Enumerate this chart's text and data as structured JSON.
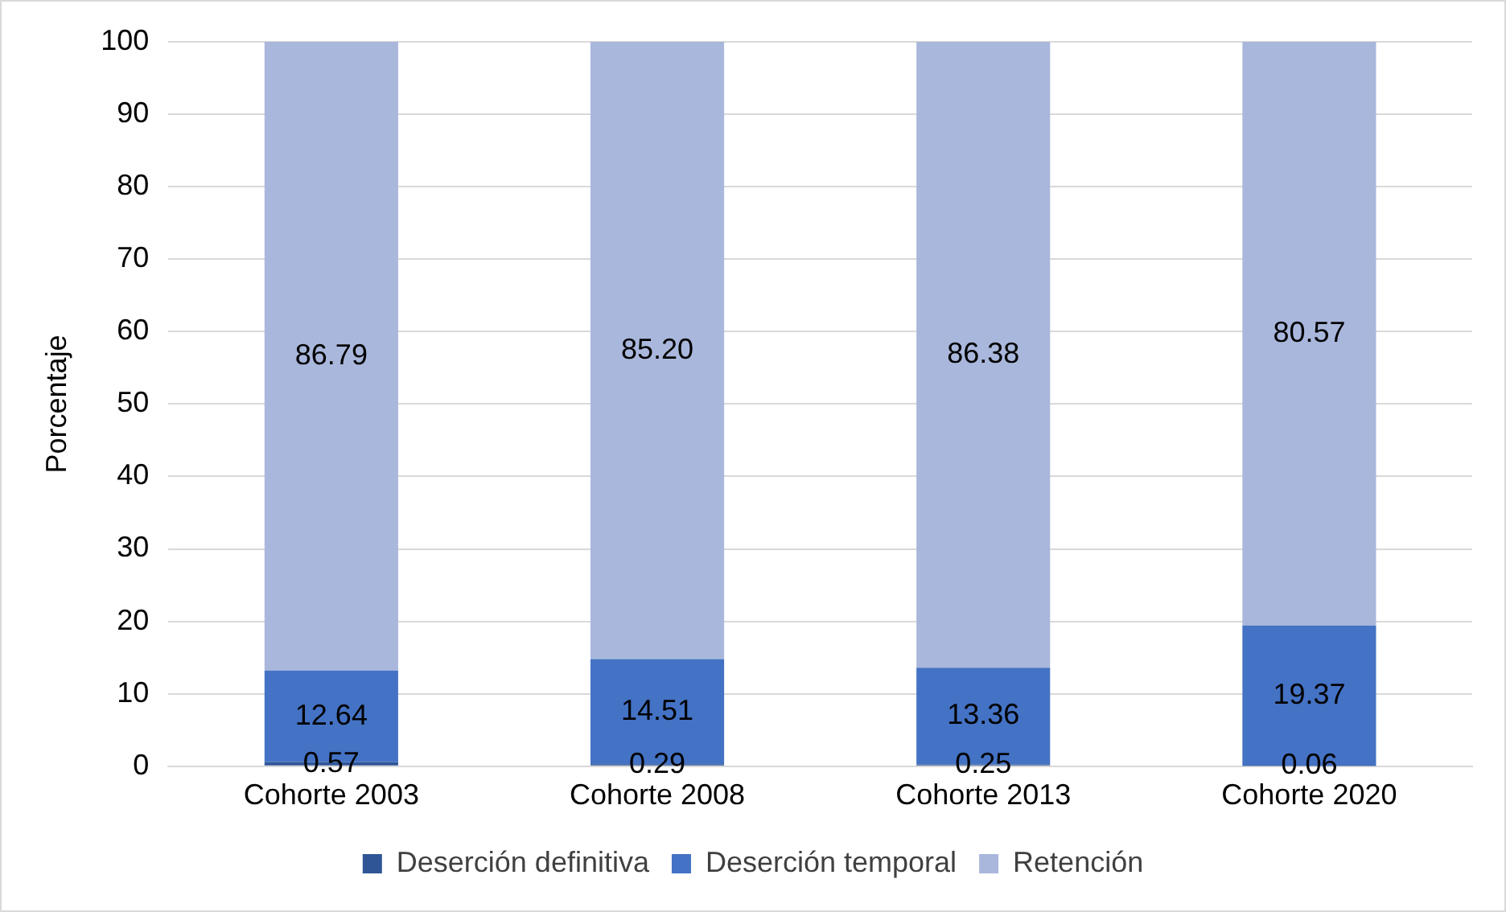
{
  "chart_data": {
    "type": "bar",
    "ylabel": "Porcentaje",
    "categories": [
      "Cohorte 2003",
      "Cohorte 2008",
      "Cohorte 2013",
      "Cohorte 2020"
    ],
    "stacked": true,
    "series": [
      {
        "name": "Deserción definitiva",
        "color": "#2f5597",
        "values": [
          0.57,
          0.29,
          0.25,
          0.06
        ],
        "value_labels": [
          "0.57",
          "0.29",
          "0.25",
          "0.06"
        ]
      },
      {
        "name": "Deserción temporal",
        "color": "#4472c4",
        "values": [
          12.64,
          14.51,
          13.36,
          19.37
        ],
        "value_labels": [
          "12.64",
          "14.51",
          "13.36",
          "19.37"
        ]
      },
      {
        "name": "Retención",
        "color": "#a9b7dc",
        "values": [
          86.79,
          85.2,
          86.38,
          80.57
        ],
        "value_labels": [
          "86.79",
          "85.20",
          "86.38",
          "80.57"
        ]
      }
    ],
    "ylim": [
      0,
      100
    ],
    "yticks": [
      0,
      10,
      20,
      30,
      40,
      50,
      60,
      70,
      80,
      90,
      100
    ],
    "grid": "y",
    "legend": "bottom"
  }
}
